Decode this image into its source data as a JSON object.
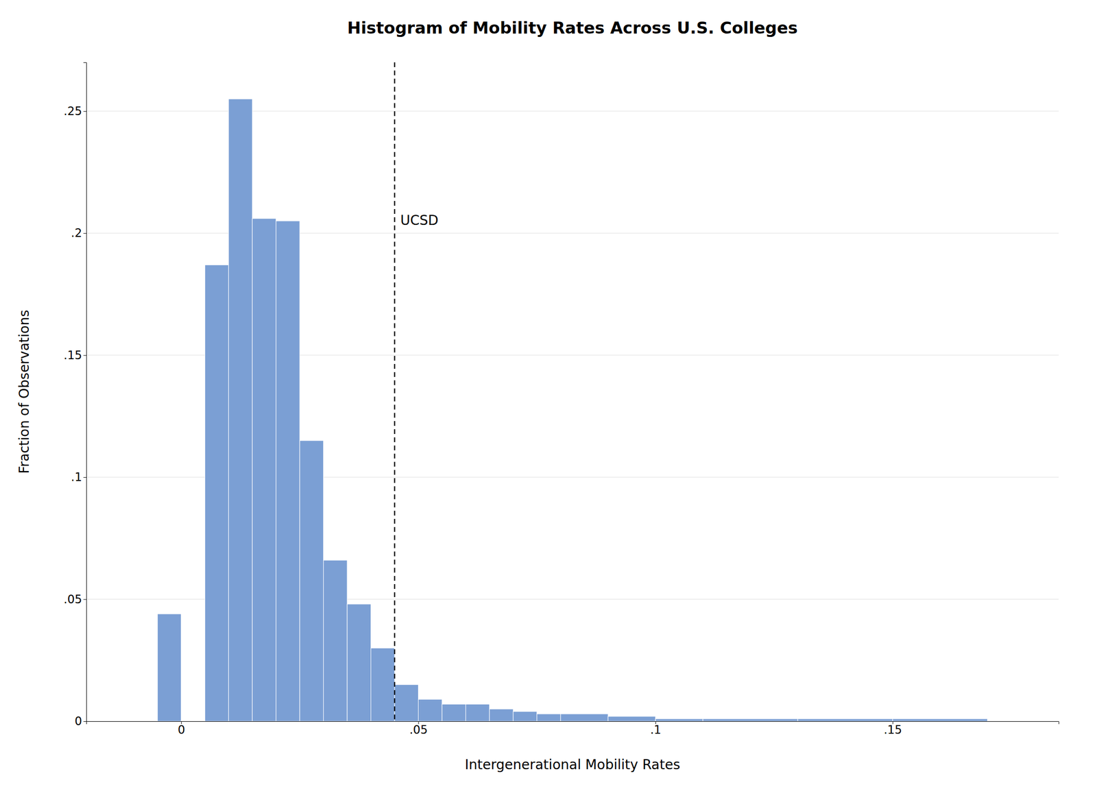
{
  "chart_data": {
    "type": "histogram",
    "title": "Histogram of Mobility Rates Across U.S. Colleges",
    "xlabel": "Intergenerational Mobility Rates",
    "ylabel": "Fraction of Observations",
    "bins": [
      -0.005,
      0.0,
      0.005,
      0.01,
      0.015,
      0.02,
      0.025,
      0.03,
      0.035,
      0.04,
      0.045,
      0.05,
      0.055,
      0.06,
      0.065,
      0.07,
      0.075,
      0.08,
      0.09,
      0.1,
      0.11,
      0.13,
      0.15,
      0.17,
      0.18
    ],
    "values": [
      0.044,
      0.0,
      0.187,
      0.255,
      0.206,
      0.205,
      0.115,
      0.066,
      0.048,
      0.03,
      0.015,
      0.009,
      0.007,
      0.007,
      0.005,
      0.004,
      0.003,
      0.003,
      0.002,
      0.001,
      0.001,
      0.001,
      0.001,
      0.0
    ],
    "color": "#7b9fd4",
    "xlim": [
      -0.02,
      0.185
    ],
    "ylim": [
      0,
      0.27
    ],
    "xticks": [
      0,
      {
        "value": 0.05,
        "label": ".05"
      },
      {
        "value": 0.1,
        "label": ".1"
      },
      {
        "value": 0.15,
        "label": ".15"
      }
    ],
    "yticks": [
      0,
      {
        "value": 0.05,
        "label": ".05"
      },
      {
        "value": 0.1,
        "label": ".1"
      },
      {
        "value": 0.15,
        "label": ".15"
      },
      {
        "value": 0.2,
        "label": ".2"
      },
      {
        "value": 0.25,
        "label": ".25"
      }
    ],
    "grid": true,
    "annotations": [
      {
        "text": "UCSD",
        "x": 0.045,
        "y": 0.205
      }
    ]
  }
}
